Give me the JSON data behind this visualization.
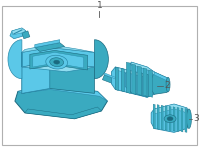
{
  "bg_color": "#ffffff",
  "border_color": "#b0b0b0",
  "part_fill": "#5bc8e8",
  "part_edge": "#2a8aaa",
  "part_dark": "#3aaac0",
  "part_light": "#90ddf0",
  "part_darker": "#1a6a80",
  "label_color": "#555555",
  "label_fontsize": 6.5,
  "figsize": [
    2.0,
    1.47
  ],
  "dpi": 100
}
